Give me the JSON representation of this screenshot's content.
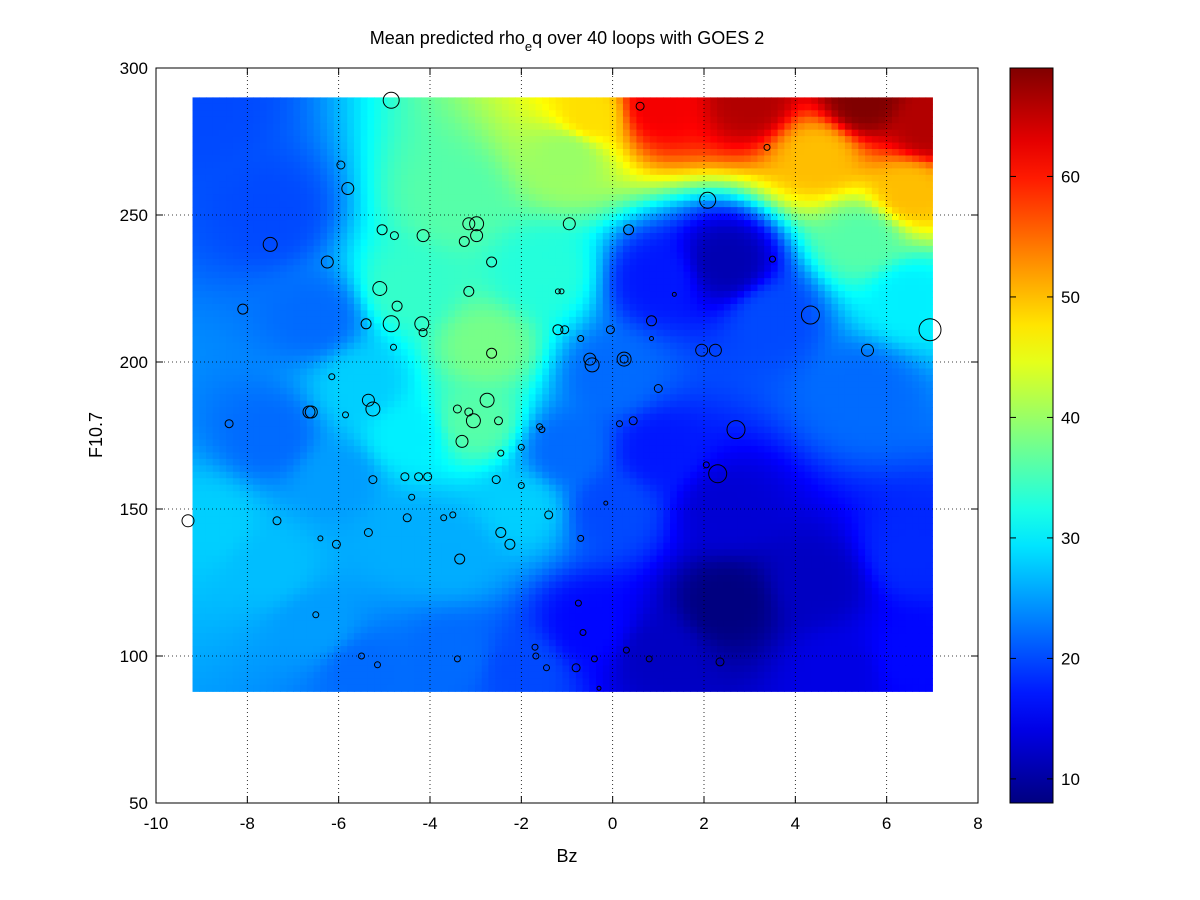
{
  "chart_data": {
    "type": "heatmap",
    "title_prefix": "Mean predicted rho",
    "title_subscript": "e",
    "title_suffix": "q over 40 loops with GOES 2",
    "xlabel": "Bz",
    "ylabel": "F10.7",
    "xlim": [
      -10,
      8
    ],
    "ylim": [
      50,
      300
    ],
    "xticks": [
      "-10",
      "-8",
      "-6",
      "-4",
      "-2",
      "0",
      "2",
      "4",
      "6",
      "8"
    ],
    "yticks": [
      "50",
      "100",
      "150",
      "200",
      "250",
      "300"
    ],
    "grid": "dotted",
    "colormap": "jet",
    "heatmap_extent": {
      "x": [
        -9.2,
        7.0
      ],
      "y": [
        88,
        290
      ]
    },
    "colorbar": {
      "range": [
        8,
        69
      ],
      "ticks": [
        "10",
        "20",
        "30",
        "40",
        "50",
        "60"
      ],
      "placement": "right"
    },
    "surface_anchors": [
      [
        -9.0,
        286,
        20
      ],
      [
        -7.5,
        250,
        20
      ],
      [
        -6.5,
        215,
        22
      ],
      [
        -7.5,
        175,
        22
      ],
      [
        -8.8,
        145,
        28
      ],
      [
        -7.5,
        130,
        27
      ],
      [
        -6.5,
        110,
        25
      ],
      [
        -5.5,
        95,
        22
      ],
      [
        -6.0,
        160,
        25
      ],
      [
        -5.5,
        192,
        28
      ],
      [
        -4.5,
        175,
        30
      ],
      [
        -4.5,
        225,
        34
      ],
      [
        -3.5,
        255,
        36
      ],
      [
        -2.8,
        205,
        38
      ],
      [
        -3.0,
        180,
        36
      ],
      [
        -2.0,
        150,
        28
      ],
      [
        -3.5,
        135,
        26
      ],
      [
        -1.5,
        230,
        33
      ],
      [
        -1.0,
        270,
        40
      ],
      [
        -0.5,
        284,
        48
      ],
      [
        1.0,
        287,
        62
      ],
      [
        3.0,
        289,
        66
      ],
      [
        5.5,
        289,
        69
      ],
      [
        6.9,
        280,
        66
      ],
      [
        4.5,
        270,
        50
      ],
      [
        6.5,
        258,
        50
      ],
      [
        5.5,
        242,
        36
      ],
      [
        2.5,
        234,
        11
      ],
      [
        1.0,
        228,
        17
      ],
      [
        3.5,
        215,
        20
      ],
      [
        6.5,
        222,
        30
      ],
      [
        5.5,
        190,
        22
      ],
      [
        0.0,
        195,
        22
      ],
      [
        -1.0,
        170,
        22
      ],
      [
        0.0,
        150,
        20
      ],
      [
        1.0,
        170,
        17
      ],
      [
        2.5,
        150,
        13
      ],
      [
        2.5,
        118,
        8
      ],
      [
        4.5,
        125,
        12
      ],
      [
        6.5,
        135,
        18
      ],
      [
        1.0,
        100,
        12
      ],
      [
        -0.5,
        110,
        16
      ],
      [
        -2.0,
        95,
        20
      ],
      [
        -3.5,
        100,
        22
      ],
      [
        5.0,
        95,
        14
      ],
      [
        6.5,
        100,
        16
      ],
      [
        -4.5,
        140,
        26
      ]
    ],
    "points": [
      [
        -9.3,
        146,
        6
      ],
      [
        -8.4,
        179,
        4
      ],
      [
        -8.1,
        218,
        5
      ],
      [
        -7.5,
        240,
        7
      ],
      [
        -7.35,
        146,
        4
      ],
      [
        -6.65,
        183,
        6
      ],
      [
        -6.6,
        183,
        6
      ],
      [
        -6.5,
        114,
        3
      ],
      [
        -6.4,
        140,
        2.5
      ],
      [
        -6.25,
        234,
        6
      ],
      [
        -6.15,
        195,
        3
      ],
      [
        -6.05,
        138,
        4
      ],
      [
        -5.95,
        267,
        4
      ],
      [
        -5.85,
        182,
        3
      ],
      [
        -5.8,
        259,
        6
      ],
      [
        -5.5,
        100,
        3
      ],
      [
        -5.4,
        213,
        5
      ],
      [
        -5.35,
        187,
        6
      ],
      [
        -5.35,
        142,
        4
      ],
      [
        -5.25,
        184,
        7
      ],
      [
        -5.25,
        160,
        4
      ],
      [
        -5.15,
        97,
        3
      ],
      [
        -5.1,
        225,
        7
      ],
      [
        -5.05,
        245,
        5
      ],
      [
        -4.85,
        289,
        8
      ],
      [
        -4.85,
        213,
        8
      ],
      [
        -4.8,
        205,
        3
      ],
      [
        -4.78,
        243,
        4
      ],
      [
        -4.72,
        219,
        5
      ],
      [
        -4.55,
        161,
        4
      ],
      [
        -4.5,
        147,
        4
      ],
      [
        -4.4,
        154,
        3
      ],
      [
        -4.25,
        161,
        4
      ],
      [
        -4.18,
        213,
        7
      ],
      [
        -4.15,
        210,
        4
      ],
      [
        -4.15,
        243,
        6
      ],
      [
        -4.05,
        161,
        4
      ],
      [
        -3.7,
        147,
        3
      ],
      [
        -3.5,
        148,
        3
      ],
      [
        -3.4,
        184,
        4
      ],
      [
        -3.4,
        99,
        3
      ],
      [
        -3.35,
        133,
        5
      ],
      [
        -3.3,
        173,
        6
      ],
      [
        -3.25,
        241,
        5
      ],
      [
        -3.15,
        183,
        4
      ],
      [
        -3.15,
        247,
        6
      ],
      [
        -3.15,
        224,
        5
      ],
      [
        -3.05,
        180,
        7
      ],
      [
        -2.98,
        247,
        7
      ],
      [
        -2.98,
        243,
        6
      ],
      [
        -2.75,
        187,
        7
      ],
      [
        -2.65,
        234,
        5
      ],
      [
        -2.65,
        203,
        5
      ],
      [
        -2.55,
        160,
        4
      ],
      [
        -2.5,
        180,
        4
      ],
      [
        -2.45,
        169,
        3
      ],
      [
        -2.45,
        142,
        5
      ],
      [
        -2.25,
        138,
        5
      ],
      [
        -2.0,
        171,
        3
      ],
      [
        -2.0,
        158,
        3
      ],
      [
        -1.7,
        103,
        3
      ],
      [
        -1.68,
        100,
        3
      ],
      [
        -1.6,
        178,
        3
      ],
      [
        -1.55,
        177,
        3
      ],
      [
        -1.45,
        96,
        3
      ],
      [
        -1.4,
        148,
        4
      ],
      [
        -1.2,
        224,
        2.5
      ],
      [
        -1.2,
        211,
        5
      ],
      [
        -1.12,
        224,
        2.5
      ],
      [
        -1.05,
        211,
        4
      ],
      [
        -0.95,
        247,
        6
      ],
      [
        -0.8,
        96,
        4
      ],
      [
        -0.75,
        118,
        3
      ],
      [
        -0.7,
        208,
        3
      ],
      [
        -0.7,
        140,
        3
      ],
      [
        -0.65,
        108,
        3
      ],
      [
        -0.5,
        201,
        6
      ],
      [
        -0.45,
        199,
        7
      ],
      [
        -0.4,
        99,
        3
      ],
      [
        -0.3,
        89,
        2
      ],
      [
        -0.15,
        152,
        2
      ],
      [
        -0.05,
        211,
        4
      ],
      [
        0.15,
        179,
        3
      ],
      [
        0.25,
        201,
        7
      ],
      [
        0.25,
        201,
        4
      ],
      [
        0.3,
        102,
        3
      ],
      [
        0.35,
        245,
        5
      ],
      [
        0.45,
        180,
        4
      ],
      [
        0.6,
        287,
        4
      ],
      [
        0.8,
        99,
        3
      ],
      [
        0.85,
        214,
        5
      ],
      [
        0.85,
        208,
        2
      ],
      [
        1.0,
        191,
        4
      ],
      [
        1.35,
        223,
        2
      ],
      [
        1.95,
        204,
        6
      ],
      [
        2.05,
        165,
        3
      ],
      [
        2.08,
        255,
        8
      ],
      [
        2.25,
        204,
        6
      ],
      [
        2.3,
        162,
        9
      ],
      [
        2.35,
        98,
        4
      ],
      [
        2.7,
        177,
        9
      ],
      [
        3.38,
        273,
        3
      ],
      [
        3.5,
        235,
        3
      ],
      [
        4.33,
        216,
        9
      ],
      [
        5.58,
        204,
        6
      ],
      [
        6.95,
        211,
        11
      ]
    ]
  }
}
